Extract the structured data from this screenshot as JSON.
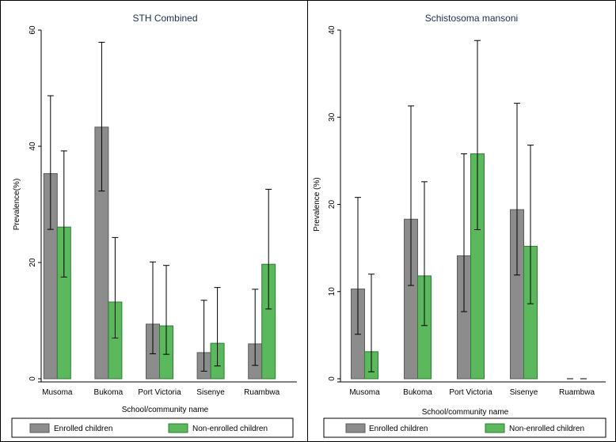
{
  "chart_data": [
    {
      "type": "bar",
      "title": "STH Combined",
      "xlabel": "School/community name",
      "ylabel": "Prevalence(%)",
      "ylim": [
        0,
        60
      ],
      "yticks": [
        0,
        20,
        40,
        60
      ],
      "categories": [
        "Musoma",
        "Bukoma",
        "Port Victoria",
        "Sisenye",
        "Ruambwa"
      ],
      "series": [
        {
          "name": "Enrolled children",
          "color": "#8c8c8c",
          "values": [
            35.3,
            43.3,
            9.4,
            4.5,
            6.0
          ],
          "ci_low": [
            25.7,
            32.3,
            4.3,
            1.3,
            2.3
          ],
          "ci_high": [
            48.7,
            57.9,
            20.1,
            13.5,
            15.4
          ]
        },
        {
          "name": "Non-enrolled children",
          "color": "#5cb85c",
          "values": [
            26.1,
            13.2,
            9.1,
            6.1,
            19.7
          ],
          "ci_low": [
            17.5,
            7.0,
            4.2,
            2.2,
            12.0
          ],
          "ci_high": [
            39.2,
            24.3,
            19.5,
            15.7,
            32.6
          ]
        }
      ],
      "legend": "bottom"
    },
    {
      "type": "bar",
      "title": "Schistosoma mansoni",
      "xlabel": "School/community name",
      "ylabel": "Prevalence (%)",
      "ylim": [
        0,
        40
      ],
      "yticks": [
        0,
        10,
        20,
        30,
        40
      ],
      "categories": [
        "Musoma",
        "Bukoma",
        "Port Victoria",
        "Sisenye",
        "Ruambwa"
      ],
      "series": [
        {
          "name": "Enrolled children",
          "color": "#8c8c8c",
          "values": [
            10.3,
            18.3,
            14.1,
            19.4,
            0
          ],
          "ci_low": [
            5.1,
            10.7,
            7.7,
            11.9,
            0
          ],
          "ci_high": [
            20.8,
            31.3,
            25.8,
            31.6,
            0
          ]
        },
        {
          "name": "Non-enrolled children",
          "color": "#5cb85c",
          "values": [
            3.1,
            11.8,
            25.8,
            15.2,
            0
          ],
          "ci_low": [
            0.8,
            6.1,
            17.1,
            8.6,
            0
          ],
          "ci_high": [
            12.0,
            22.6,
            38.8,
            26.8,
            0
          ]
        }
      ],
      "legend": "bottom"
    }
  ]
}
